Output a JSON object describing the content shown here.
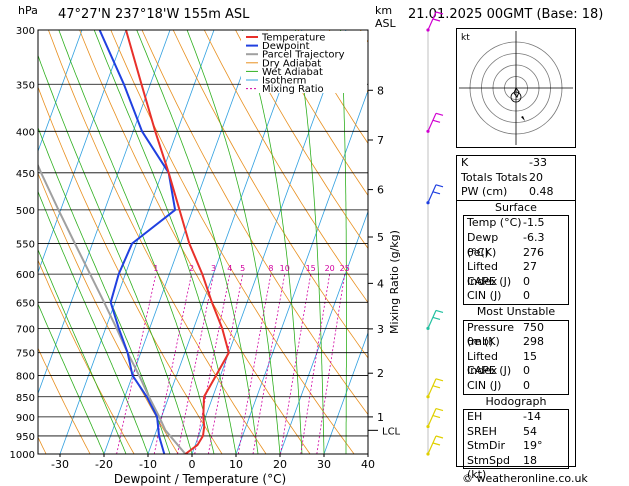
{
  "header": {
    "hpa_unit": "hPa",
    "location": "47°27'N  237°18'W  155m  ASL",
    "km_unit": "km",
    "asl_unit": "ASL",
    "datetime": "21.01.2025  00GMT  (Base: 18)"
  },
  "footer": {
    "credit": "© weatheronline.co.uk"
  },
  "colors": {
    "temperature": "#e8302a",
    "dewpoint": "#2040e0",
    "parcel": "#a0a0a0",
    "dry_adiabat": "#e89020",
    "wet_adiabat": "#30b020",
    "isotherm": "#30a0e0",
    "mixing_ratio": "#d000a0",
    "wind": "#e0d000"
  },
  "chart_data": {
    "type": "line",
    "xlabel": "Dewpoint / Temperature (°C)",
    "ylabel_right": "Mixing Ratio (g/kg)",
    "x_ticks": [
      -30,
      -20,
      -10,
      0,
      10,
      20,
      30,
      40
    ],
    "p_ticks": [
      300,
      350,
      400,
      450,
      500,
      550,
      600,
      650,
      700,
      750,
      800,
      850,
      900,
      950,
      1000
    ],
    "xlim": [
      -35,
      40
    ],
    "plim": [
      300,
      1000
    ],
    "km_ticks": [
      {
        "km": "8",
        "p": 356
      },
      {
        "km": "7",
        "p": 410
      },
      {
        "km": "6",
        "p": 472
      },
      {
        "km": "5",
        "p": 540
      },
      {
        "km": "4",
        "p": 616
      },
      {
        "km": "3",
        "p": 701
      },
      {
        "km": "2",
        "p": 795
      },
      {
        "km": "1",
        "p": 900
      }
    ],
    "lcl": {
      "label": "LCL",
      "p": 935
    },
    "mixing_ratio_labels": [
      "1",
      "2",
      "3",
      "4",
      "5",
      "8",
      "10",
      "15",
      "20",
      "25"
    ],
    "legend": [
      "Temperature",
      "Dewpoint",
      "Parcel Trajectory",
      "Dry Adiabat",
      "Wet Adiabat",
      "Isotherm",
      "Mixing Ratio"
    ],
    "series": [
      {
        "name": "Temperature",
        "points": [
          {
            "p": 1000,
            "t": -1.5
          },
          {
            "p": 975,
            "t": 0.5
          },
          {
            "p": 950,
            "t": 1.0
          },
          {
            "p": 925,
            "t": 0.5
          },
          {
            "p": 900,
            "t": -0.5
          },
          {
            "p": 850,
            "t": -2.0
          },
          {
            "p": 800,
            "t": -1.0
          },
          {
            "p": 750,
            "t": 0.0
          },
          {
            "p": 700,
            "t": -3.5
          },
          {
            "p": 650,
            "t": -8.0
          },
          {
            "p": 600,
            "t": -12.5
          },
          {
            "p": 550,
            "t": -18.0
          },
          {
            "p": 500,
            "t": -23.0
          },
          {
            "p": 450,
            "t": -28.5
          },
          {
            "p": 400,
            "t": -35.0
          },
          {
            "p": 350,
            "t": -42.0
          },
          {
            "p": 300,
            "t": -50.0
          }
        ]
      },
      {
        "name": "Dewpoint",
        "points": [
          {
            "p": 1000,
            "t": -6.3
          },
          {
            "p": 950,
            "t": -9.0
          },
          {
            "p": 900,
            "t": -11.0
          },
          {
            "p": 850,
            "t": -15.0
          },
          {
            "p": 800,
            "t": -20.0
          },
          {
            "p": 750,
            "t": -23.0
          },
          {
            "p": 700,
            "t": -27.0
          },
          {
            "p": 650,
            "t": -31.0
          },
          {
            "p": 600,
            "t": -31.5
          },
          {
            "p": 550,
            "t": -31.0
          },
          {
            "p": 500,
            "t": -24.0
          },
          {
            "p": 450,
            "t": -28.5
          },
          {
            "p": 400,
            "t": -38.0
          },
          {
            "p": 350,
            "t": -46.0
          },
          {
            "p": 300,
            "t": -56.0
          }
        ]
      },
      {
        "name": "Parcel Trajectory",
        "points": [
          {
            "p": 1000,
            "t": -1.5
          },
          {
            "p": 935,
            "t": -8.0
          },
          {
            "p": 900,
            "t": -10.5
          },
          {
            "p": 850,
            "t": -14.5
          },
          {
            "p": 800,
            "t": -18.5
          },
          {
            "p": 750,
            "t": -23.0
          },
          {
            "p": 700,
            "t": -27.5
          },
          {
            "p": 650,
            "t": -32.5
          },
          {
            "p": 600,
            "t": -38.0
          },
          {
            "p": 550,
            "t": -44.0
          },
          {
            "p": 500,
            "t": -50.5
          },
          {
            "p": 450,
            "t": -57.5
          },
          {
            "p": 400,
            "t": -65.0
          },
          {
            "p": 350,
            "t": -73.0
          },
          {
            "p": 300,
            "t": -82.0
          }
        ]
      }
    ],
    "wind_barbs": [
      {
        "p": 300,
        "color": "#d000d0"
      },
      {
        "p": 400,
        "color": "#d000d0"
      },
      {
        "p": 490,
        "color": "#2040e0"
      },
      {
        "p": 700,
        "color": "#20c0a0"
      },
      {
        "p": 850,
        "color": "#e0d000"
      },
      {
        "p": 925,
        "color": "#e0d000"
      },
      {
        "p": 1000,
        "color": "#e0d000"
      }
    ],
    "hodograph": {
      "label": "kt",
      "rings": [
        10,
        20,
        30,
        40
      ]
    }
  },
  "indices": {
    "top": [
      {
        "label": "K",
        "value": "-33"
      },
      {
        "label": "Totals Totals",
        "value": "20"
      },
      {
        "label": "PW (cm)",
        "value": "0.48"
      }
    ],
    "surface": {
      "title": "Surface",
      "rows": [
        {
          "label": "Temp (°C)",
          "value": "-1.5"
        },
        {
          "label": "Dewp (°C)",
          "value": "-6.3"
        },
        {
          "label": "θe(K)",
          "value": "276"
        },
        {
          "label": "Lifted Index",
          "value": "27"
        },
        {
          "label": "CAPE (J)",
          "value": "0"
        },
        {
          "label": "CIN (J)",
          "value": "0"
        }
      ]
    },
    "most_unstable": {
      "title": "Most Unstable",
      "rows": [
        {
          "label": "Pressure (mb)",
          "value": "750"
        },
        {
          "label": "θe (K)",
          "value": "298"
        },
        {
          "label": "Lifted Index",
          "value": "15"
        },
        {
          "label": "CAPE (J)",
          "value": "0"
        },
        {
          "label": "CIN (J)",
          "value": "0"
        }
      ]
    },
    "hodograph": {
      "title": "Hodograph",
      "rows": [
        {
          "label": "EH",
          "value": "-14"
        },
        {
          "label": "SREH",
          "value": "54"
        },
        {
          "label": "StmDir",
          "value": "19°"
        },
        {
          "label": "StmSpd (kt)",
          "value": "18"
        }
      ]
    }
  }
}
